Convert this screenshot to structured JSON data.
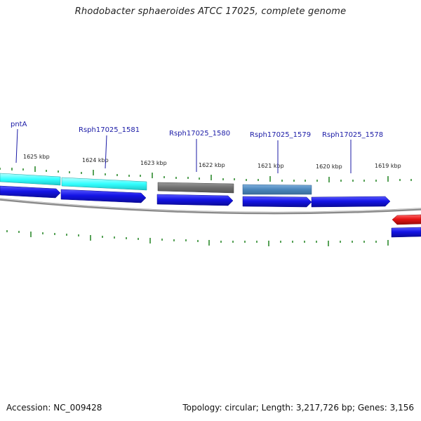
{
  "title": "Rhodobacter sphaeroides ATCC 17025, complete genome",
  "footer": {
    "accession": "Accession: NC_009428",
    "summary": "Topology: circular; Length: 3,217,726 bp; Genes: 3,156"
  },
  "scale": {
    "tick_labels": [
      "1625 kbp",
      "1624 kbp",
      "1623 kbp",
      "1622 kbp",
      "1621 kbp",
      "1620 kbp",
      "1619 kbp"
    ]
  },
  "genes": [
    {
      "name": "pntA"
    },
    {
      "name": "Rsph17025_1581"
    },
    {
      "name": "Rsph17025_1580"
    },
    {
      "name": "Rsph17025_1579"
    },
    {
      "name": "Rsph17025_1578"
    }
  ],
  "colors": {
    "forward_cds": "#1414e6",
    "reverse_cds": "#e61414",
    "cog_cyan": "#33ffff",
    "cog_gray": "#6e6e6e",
    "cog_steel": "#4a86bb",
    "backbone": "#8a8a8a",
    "tick": "#2e8b2e",
    "label": "#1a1aa6"
  }
}
